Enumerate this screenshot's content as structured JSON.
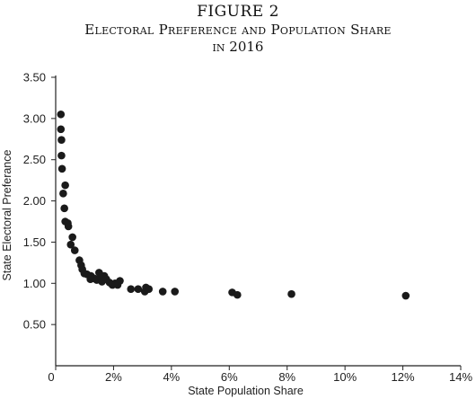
{
  "figure": {
    "label": "FIGURE 2",
    "title_line1": "Electoral Preference and Population Share",
    "title_line2": "in 2016"
  },
  "chart_data": {
    "type": "scatter",
    "xlabel": "State Population Share",
    "ylabel": "State Electoral Preferance",
    "xlim": [
      0,
      14
    ],
    "ylim": [
      0,
      3.5
    ],
    "x_ticks": [
      0,
      2,
      4,
      6,
      8,
      10,
      12,
      14
    ],
    "x_tick_labels": [
      "0",
      "2%",
      "4%",
      "6%",
      "8%",
      "10%",
      "12%",
      "14%"
    ],
    "y_ticks": [
      0.5,
      1.0,
      1.5,
      2.0,
      2.5,
      3.0,
      3.5
    ],
    "y_tick_labels": [
      "0.50",
      "1.00",
      "1.50",
      "2.00",
      "2.50",
      "3.00",
      "3.50"
    ],
    "grid": false,
    "points": [
      {
        "x": 0.18,
        "y": 3.05
      },
      {
        "x": 0.18,
        "y": 2.87
      },
      {
        "x": 0.2,
        "y": 2.74
      },
      {
        "x": 0.2,
        "y": 2.55
      },
      {
        "x": 0.22,
        "y": 2.39
      },
      {
        "x": 0.33,
        "y": 2.19
      },
      {
        "x": 0.26,
        "y": 2.09
      },
      {
        "x": 0.3,
        "y": 1.91
      },
      {
        "x": 0.33,
        "y": 1.75
      },
      {
        "x": 0.42,
        "y": 1.73
      },
      {
        "x": 0.44,
        "y": 1.69
      },
      {
        "x": 0.58,
        "y": 1.56
      },
      {
        "x": 0.52,
        "y": 1.47
      },
      {
        "x": 0.66,
        "y": 1.4
      },
      {
        "x": 0.82,
        "y": 1.28
      },
      {
        "x": 0.88,
        "y": 1.22
      },
      {
        "x": 0.92,
        "y": 1.17
      },
      {
        "x": 0.99,
        "y": 1.12
      },
      {
        "x": 1.08,
        "y": 1.11
      },
      {
        "x": 1.22,
        "y": 1.09
      },
      {
        "x": 1.2,
        "y": 1.05
      },
      {
        "x": 1.33,
        "y": 1.06
      },
      {
        "x": 1.42,
        "y": 1.04
      },
      {
        "x": 1.5,
        "y": 1.13
      },
      {
        "x": 1.55,
        "y": 1.07
      },
      {
        "x": 1.6,
        "y": 1.02
      },
      {
        "x": 1.68,
        "y": 1.09
      },
      {
        "x": 1.75,
        "y": 1.05
      },
      {
        "x": 1.86,
        "y": 1.01
      },
      {
        "x": 1.96,
        "y": 0.98
      },
      {
        "x": 2.05,
        "y": 1.0
      },
      {
        "x": 2.14,
        "y": 0.98
      },
      {
        "x": 2.22,
        "y": 1.03
      },
      {
        "x": 2.6,
        "y": 0.93
      },
      {
        "x": 2.85,
        "y": 0.93
      },
      {
        "x": 3.08,
        "y": 0.9
      },
      {
        "x": 3.12,
        "y": 0.95
      },
      {
        "x": 3.22,
        "y": 0.93
      },
      {
        "x": 3.7,
        "y": 0.9
      },
      {
        "x": 4.12,
        "y": 0.9
      },
      {
        "x": 6.1,
        "y": 0.89
      },
      {
        "x": 6.28,
        "y": 0.86
      },
      {
        "x": 8.15,
        "y": 0.87
      },
      {
        "x": 12.1,
        "y": 0.85
      }
    ]
  }
}
